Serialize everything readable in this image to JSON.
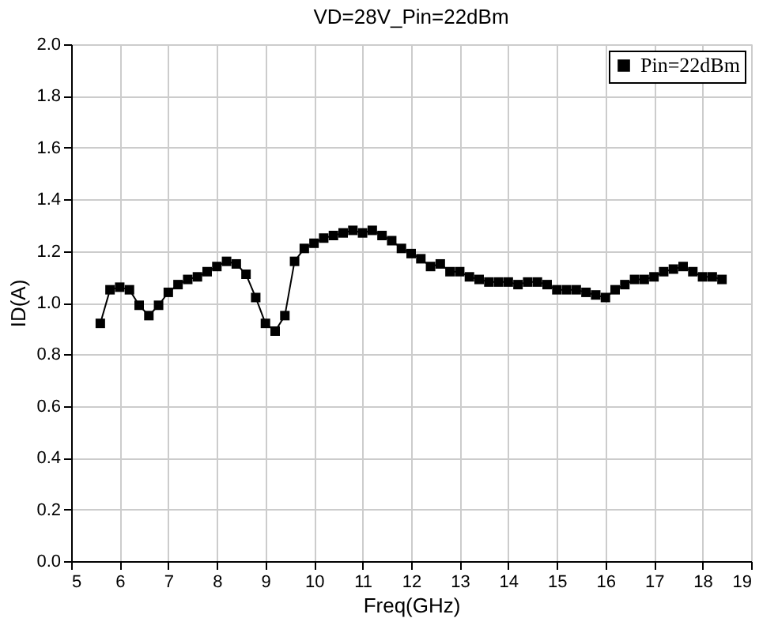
{
  "chart_data": {
    "type": "line",
    "title": "VD=28V_Pin=22dBm",
    "xlabel": "Freq(GHz)",
    "ylabel": "ID(A)",
    "series": [
      {
        "name": "Pin=22dBm",
        "color": "#000000",
        "x": [
          5.6,
          5.8,
          6.0,
          6.2,
          6.4,
          6.6,
          6.8,
          7.0,
          7.2,
          7.4,
          7.6,
          7.8,
          8.0,
          8.2,
          8.4,
          8.6,
          8.8,
          9.0,
          9.2,
          9.4,
          9.6,
          9.8,
          10.0,
          10.2,
          10.4,
          10.6,
          10.8,
          11.0,
          11.2,
          11.4,
          11.6,
          11.8,
          12.0,
          12.2,
          12.4,
          12.6,
          12.8,
          13.0,
          13.2,
          13.4,
          13.6,
          13.8,
          14.0,
          14.2,
          14.4,
          14.6,
          14.8,
          15.0,
          15.2,
          15.4,
          15.6,
          15.8,
          16.0,
          16.2,
          16.4,
          16.6,
          16.8,
          17.0,
          17.2,
          17.4,
          17.6,
          17.8,
          18.0,
          18.2,
          18.4
        ],
        "values": [
          0.92,
          1.05,
          1.06,
          1.05,
          0.99,
          0.95,
          0.99,
          1.04,
          1.07,
          1.09,
          1.1,
          1.12,
          1.14,
          1.16,
          1.15,
          1.11,
          1.02,
          0.92,
          0.89,
          0.95,
          1.16,
          1.21,
          1.23,
          1.25,
          1.26,
          1.27,
          1.28,
          1.27,
          1.28,
          1.26,
          1.24,
          1.21,
          1.19,
          1.17,
          1.14,
          1.15,
          1.12,
          1.12,
          1.1,
          1.09,
          1.08,
          1.08,
          1.08,
          1.07,
          1.08,
          1.08,
          1.07,
          1.05,
          1.05,
          1.05,
          1.04,
          1.03,
          1.02,
          1.05,
          1.07,
          1.09,
          1.09,
          1.1,
          1.12,
          1.13,
          1.14,
          1.12,
          1.1,
          1.1,
          1.09
        ]
      }
    ],
    "xlim": [
      5,
      19
    ],
    "xticks": [
      5,
      6,
      7,
      8,
      9,
      10,
      11,
      12,
      13,
      14,
      15,
      16,
      17,
      18,
      19
    ],
    "ylim": [
      0.0,
      2.0
    ],
    "yticks": [
      {
        "value": 0,
        "label": "0.0"
      },
      {
        "value": 0.2,
        "label": "0.2"
      },
      {
        "value": 0.4,
        "label": "0.4"
      },
      {
        "value": 0.6,
        "label": "0.6"
      },
      {
        "value": 0.8,
        "label": "0.8"
      },
      {
        "value": 1,
        "label": "1.0"
      },
      {
        "value": 1.2,
        "label": "1.2"
      },
      {
        "value": 1.4,
        "label": "1.4"
      },
      {
        "value": 1.6,
        "label": "1.6"
      },
      {
        "value": 1.8,
        "label": "1.8"
      },
      {
        "value": 2,
        "label": "2.0"
      }
    ],
    "grid": true,
    "legend": "top right",
    "marker": "square",
    "line_style": "solid"
  }
}
